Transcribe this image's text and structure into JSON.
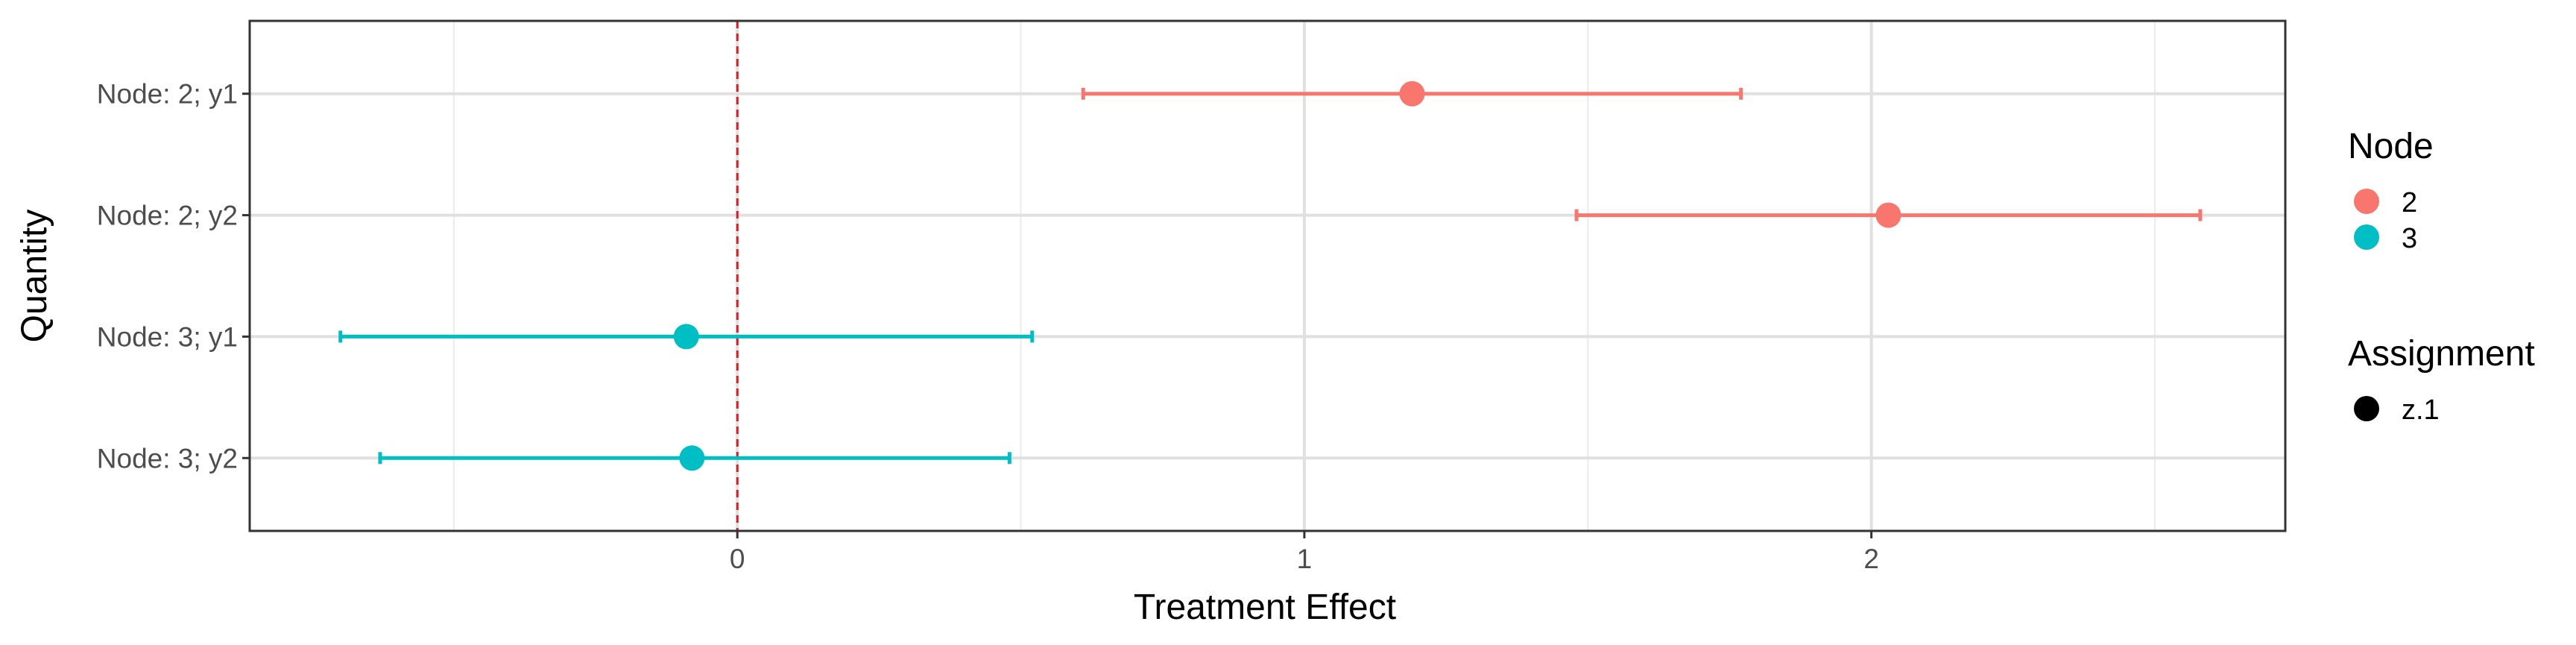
{
  "chart_data": {
    "type": "scatter",
    "subtype": "forest-plot-with-error-bars",
    "xlabel": "Treatment Effect",
    "ylabel": "Quantity",
    "xlim": [
      -0.86,
      2.73
    ],
    "x_ticks": [
      0,
      1,
      2
    ],
    "x_minor_ticks": [
      -0.5,
      0.5,
      1.5,
      2.5
    ],
    "categories": [
      "Node: 2; y1",
      "Node: 2; y2",
      "Node: 3; y1",
      "Node: 3; y2"
    ],
    "reference_line": {
      "x": 0,
      "style": "dashed",
      "color": "#E31A1C"
    },
    "grid": true,
    "series": [
      {
        "node": "2",
        "color": "#F8766D",
        "points": [
          {
            "category": "Node: 2; y1",
            "estimate": 1.19,
            "lower": 0.61,
            "upper": 1.77
          },
          {
            "category": "Node: 2; y2",
            "estimate": 2.03,
            "lower": 1.48,
            "upper": 2.58
          }
        ]
      },
      {
        "node": "3",
        "color": "#00BFC4",
        "points": [
          {
            "category": "Node: 3; y1",
            "estimate": -0.09,
            "lower": -0.7,
            "upper": 0.52
          },
          {
            "category": "Node: 3; y2",
            "estimate": -0.08,
            "lower": -0.63,
            "upper": 0.48
          }
        ]
      }
    ],
    "legend": {
      "position": "right",
      "node": {
        "title": "Node",
        "entries": [
          {
            "label": "2",
            "color": "#F8766D"
          },
          {
            "label": "3",
            "color": "#00BFC4"
          }
        ]
      },
      "assignment": {
        "title": "Assignment",
        "entries": [
          {
            "label": "z.1",
            "color": "#000000"
          }
        ]
      }
    }
  }
}
